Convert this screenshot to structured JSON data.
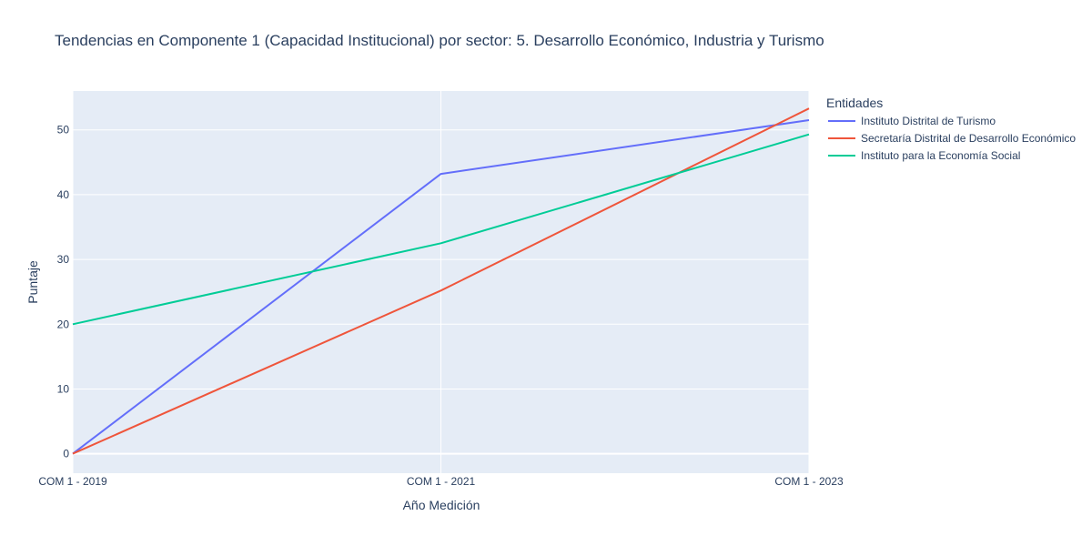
{
  "chart_data": {
    "type": "line",
    "title": "Tendencias en Componente 1 (Capacidad Institucional) por sector: 5. Desarrollo Económico, Industria y Turismo",
    "xlabel": "Año Medición",
    "ylabel": "Puntaje",
    "categories": [
      "COM 1 - 2019",
      "COM 1 - 2021",
      "COM 1 - 2023"
    ],
    "ylim": [
      -3,
      56
    ],
    "yticks": [
      0,
      10,
      20,
      30,
      40,
      50
    ],
    "grid": true,
    "legend": {
      "title": "Entidades",
      "placement": "right"
    },
    "series": [
      {
        "name": "Instituto Distrital de Turismo",
        "color": "#636efa",
        "values": [
          0,
          43.2,
          51.5
        ]
      },
      {
        "name": "Secretaría Distrital de Desarrollo Económico",
        "color": "#ef553b",
        "values": [
          0,
          25.2,
          53.3
        ]
      },
      {
        "name": "Instituto para la Economía Social",
        "color": "#00cc96",
        "values": [
          20,
          32.5,
          49.3
        ]
      }
    ],
    "plot_bgcolor": "#e5ecf6",
    "grid_color": "#ffffff"
  }
}
